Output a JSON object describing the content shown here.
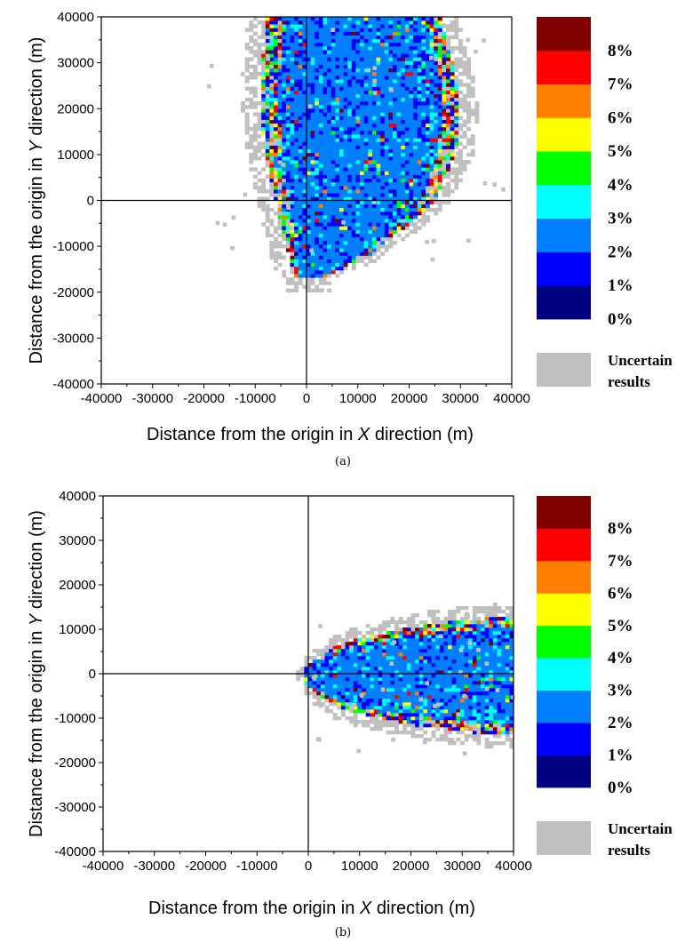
{
  "chart_data": [
    {
      "type": "heatmap",
      "panel_label": "(a)",
      "xlabel_prefix": "Distance from the origin in ",
      "xlabel_var": "X",
      "xlabel_suffix": " direction (m)",
      "ylabel_prefix": "Distance from the origin in ",
      "ylabel_var": "Y",
      "ylabel_suffix": " direction (m)",
      "xlim": [
        -40000,
        40000
      ],
      "ylim": [
        -40000,
        40000
      ],
      "x_ticks": [
        "-40000",
        "-30000",
        "-20000",
        "-10000",
        "0",
        "10000",
        "20000",
        "30000",
        "40000"
      ],
      "y_ticks": [
        "40000",
        "30000",
        "20000",
        "10000",
        "0",
        "-10000",
        "-20000",
        "-30000",
        "-40000"
      ],
      "grid": false,
      "reference_lines": [
        {
          "axis": "x",
          "value": 0
        },
        {
          "axis": "y",
          "value": 0
        }
      ],
      "colorbar": {
        "colors": [
          "#000080",
          "#0000ff",
          "#0080ff",
          "#00ffff",
          "#00ff00",
          "#ffff00",
          "#ff8000",
          "#ff0000",
          "#800000"
        ],
        "labels": [
          "0%",
          "1%",
          "2%",
          "3%",
          "4%",
          "5%",
          "6%",
          "7%",
          "8%"
        ]
      },
      "uncertain": {
        "color": "#c0c0c0",
        "line1": "Uncertain",
        "line2": "results"
      },
      "region": {
        "description_shape": "blob",
        "y_range": [
          -17000,
          40000
        ],
        "x_left_at": [
          [
            -17000,
            -2000
          ],
          [
            -10000,
            -4000
          ],
          [
            0,
            -6000
          ],
          [
            10000,
            -8000
          ],
          [
            20000,
            -9000
          ],
          [
            30000,
            -8500
          ],
          [
            40000,
            -8000
          ]
        ],
        "x_right_at": [
          [
            -17000,
            3000
          ],
          [
            -12000,
            12000
          ],
          [
            -5000,
            20000
          ],
          [
            0,
            25000
          ],
          [
            10000,
            29000
          ],
          [
            20000,
            30000
          ],
          [
            30000,
            28500
          ],
          [
            40000,
            26000
          ]
        ],
        "dominant_level_index": 2
      }
    },
    {
      "type": "heatmap",
      "panel_label": "(b)",
      "xlabel_prefix": "Distance from the origin in ",
      "xlabel_var": "X",
      "xlabel_suffix": " direction (m)",
      "ylabel_prefix": "Distance from the origin in ",
      "ylabel_var": "Y",
      "ylabel_suffix": " direction (m)",
      "xlim": [
        -40000,
        40000
      ],
      "ylim": [
        -40000,
        40000
      ],
      "x_ticks": [
        "-40000",
        "-30000",
        "-20000",
        "-10000",
        "0",
        "10000",
        "20000",
        "30000",
        "40000"
      ],
      "y_ticks": [
        "40000",
        "30000",
        "20000",
        "10000",
        "0",
        "-10000",
        "-20000",
        "-30000",
        "-40000"
      ],
      "grid": false,
      "reference_lines": [
        {
          "axis": "x",
          "value": 0
        },
        {
          "axis": "y",
          "value": 0
        }
      ],
      "colorbar": {
        "colors": [
          "#000080",
          "#0000ff",
          "#0080ff",
          "#00ffff",
          "#00ff00",
          "#ffff00",
          "#ff8000",
          "#ff0000",
          "#800000"
        ],
        "labels": [
          "0%",
          "1%",
          "2%",
          "3%",
          "4%",
          "5%",
          "6%",
          "7%",
          "8%"
        ]
      },
      "uncertain": {
        "color": "#c0c0c0",
        "line1": "Uncertain",
        "line2": "results"
      },
      "region": {
        "description_shape": "cone",
        "x_range": [
          -1000,
          40000
        ],
        "half_width_at": [
          [
            -1000,
            1000
          ],
          [
            0,
            2500
          ],
          [
            5000,
            6500
          ],
          [
            10000,
            8500
          ],
          [
            20000,
            11000
          ],
          [
            30000,
            12500
          ],
          [
            40000,
            13500
          ]
        ],
        "dominant_level_index": 2
      }
    }
  ]
}
